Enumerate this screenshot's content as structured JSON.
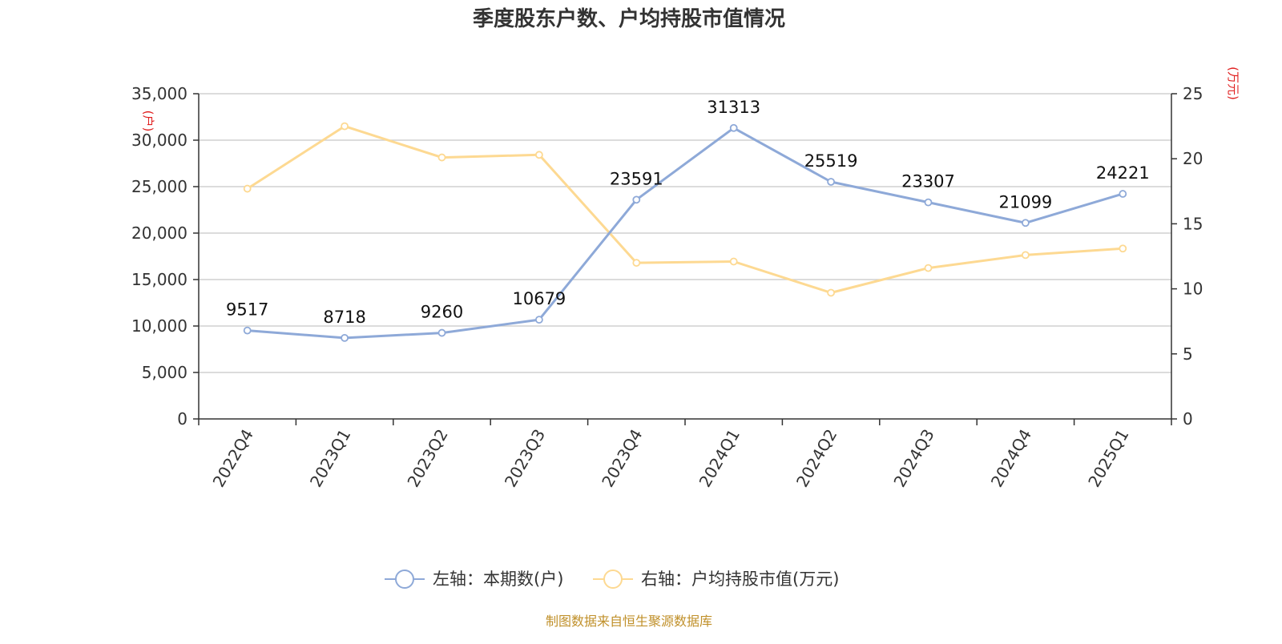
{
  "chart_data": {
    "type": "line",
    "title": "季度股东户数、户均持股市值情况",
    "categories": [
      "2022Q4",
      "2023Q1",
      "2023Q2",
      "2023Q3",
      "2023Q4",
      "2024Q1",
      "2024Q2",
      "2024Q3",
      "2024Q4",
      "2025Q1"
    ],
    "left_axis": {
      "unit": "(户)",
      "range": [
        0,
        35000
      ],
      "ticks": [
        "0",
        "5,000",
        "10,000",
        "15,000",
        "20,000",
        "25,000",
        "30,000",
        "35,000"
      ],
      "tick_values": [
        0,
        5000,
        10000,
        15000,
        20000,
        25000,
        30000,
        35000
      ]
    },
    "right_axis": {
      "unit": "(万元)",
      "range": [
        0,
        25
      ],
      "ticks": [
        "0",
        "5",
        "10",
        "15",
        "20",
        "25"
      ],
      "tick_values": [
        0,
        5,
        10,
        15,
        20,
        25
      ]
    },
    "series": [
      {
        "name": "左轴：本期数(户)",
        "axis": "left",
        "color": "#8ea9d8",
        "values": [
          9517,
          8718,
          9260,
          10679,
          23591,
          31313,
          25519,
          23307,
          21099,
          24221
        ],
        "labels": [
          "9517",
          "8718",
          "9260",
          "10679",
          "23591",
          "31313",
          "25519",
          "23307",
          "21099",
          "24221"
        ]
      },
      {
        "name": "右轴：户均持股市值(万元)",
        "axis": "right",
        "color": "#fdd992",
        "values": [
          17.7,
          22.5,
          20.1,
          20.3,
          12.0,
          12.1,
          9.7,
          11.6,
          12.6,
          13.1
        ]
      }
    ],
    "grid": true,
    "legend_position": "bottom-center",
    "unit_color": "#e02020"
  },
  "footer": {
    "source": "制图数据来自恒生聚源数据库",
    "color": "#c0902a"
  }
}
